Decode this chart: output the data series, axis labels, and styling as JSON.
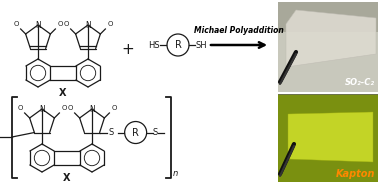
{
  "background_color": "#ffffff",
  "arrow_text": "Michael Polyaddition",
  "label_so2": "SO₂-C₂",
  "label_kapton": "Kapton",
  "label_so2_color": "#ffffff",
  "label_kapton_color": "#ff8800",
  "structure_color": "#1a1a1a",
  "photo_top_bg1": "#b8b8b0",
  "photo_top_bg2": "#d8d4c8",
  "photo_top_film": "#e8e6e0",
  "photo_bottom_bg": "#6a8010",
  "photo_bottom_film": "#b8cc20",
  "tweezers_color": "#111111"
}
